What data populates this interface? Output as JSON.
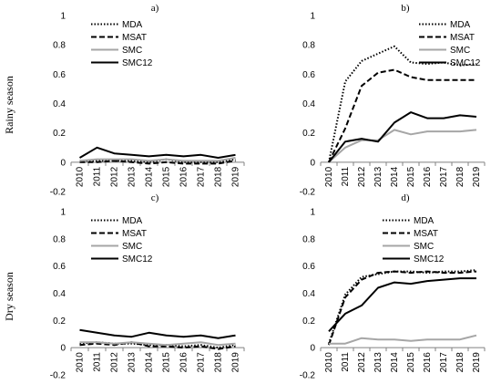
{
  "row_labels": [
    "Rainy season",
    "Dry season"
  ],
  "colors": {
    "MDA": "#000000",
    "MSAT": "#000000",
    "SMC": "#a6a6a6",
    "SMC12": "#000000",
    "axis": "#808080"
  },
  "chart_data": [
    {
      "type": "line",
      "title": "a)",
      "x": [
        "2010",
        "2011",
        "2012",
        "2013",
        "2014",
        "2015",
        "2016",
        "2017",
        "2018",
        "2019"
      ],
      "ylim": [
        -0.2,
        1.0
      ],
      "yticks": [
        "-0.2",
        "0",
        "0.2",
        "0.4",
        "0.6",
        "0.8",
        "1"
      ],
      "legend": "top-left",
      "series": [
        {
          "name": "MDA",
          "style": "dotted",
          "values": [
            0.01,
            0.01,
            0.01,
            0.01,
            0.0,
            0.02,
            0.0,
            0.0,
            0.0,
            0.02
          ]
        },
        {
          "name": "MSAT",
          "style": "dashed",
          "values": [
            0.0,
            0.0,
            0.01,
            0.0,
            -0.01,
            0.0,
            -0.01,
            -0.01,
            -0.01,
            0.01
          ]
        },
        {
          "name": "SMC",
          "style": "solid-gray",
          "values": [
            0.01,
            0.02,
            0.02,
            0.02,
            0.01,
            0.02,
            0.01,
            0.01,
            0.01,
            0.03
          ]
        },
        {
          "name": "SMC12",
          "style": "solid",
          "values": [
            0.03,
            0.1,
            0.06,
            0.05,
            0.04,
            0.05,
            0.04,
            0.05,
            0.03,
            0.05
          ]
        }
      ]
    },
    {
      "type": "line",
      "title": "b)",
      "x": [
        "2010",
        "2011",
        "2012",
        "2013",
        "2014",
        "2015",
        "2016",
        "2017",
        "2018",
        "2019"
      ],
      "ylim": [
        -0.2,
        1.0
      ],
      "yticks": [
        "-0.2",
        "0",
        "0.2",
        "0.4",
        "0.6",
        "0.8",
        "1"
      ],
      "legend": "top-right",
      "series": [
        {
          "name": "MDA",
          "style": "dotted",
          "values": [
            0.0,
            0.55,
            0.69,
            0.74,
            0.79,
            0.68,
            0.67,
            0.68,
            0.66,
            0.67
          ]
        },
        {
          "name": "MSAT",
          "style": "dashed",
          "values": [
            0.0,
            0.23,
            0.52,
            0.61,
            0.63,
            0.58,
            0.56,
            0.56,
            0.56,
            0.56
          ]
        },
        {
          "name": "SMC",
          "style": "solid-gray",
          "values": [
            0.0,
            0.1,
            0.15,
            0.15,
            0.22,
            0.19,
            0.21,
            0.21,
            0.21,
            0.22
          ]
        },
        {
          "name": "SMC12",
          "style": "solid",
          "values": [
            0.0,
            0.14,
            0.16,
            0.14,
            0.27,
            0.34,
            0.3,
            0.3,
            0.32,
            0.31
          ]
        }
      ]
    },
    {
      "type": "line",
      "title": "c)",
      "x": [
        "2010",
        "2011",
        "2012",
        "2013",
        "2014",
        "2015",
        "2016",
        "2017",
        "2018",
        "2019"
      ],
      "ylim": [
        -0.2,
        1.0
      ],
      "yticks": [
        "-0.2",
        "0",
        "0.2",
        "0.4",
        "0.6",
        "0.8",
        "1"
      ],
      "legend": "top-left",
      "series": [
        {
          "name": "MDA",
          "style": "dotted",
          "values": [
            0.03,
            0.04,
            0.03,
            0.03,
            0.02,
            0.02,
            0.01,
            0.02,
            0.0,
            0.02
          ]
        },
        {
          "name": "MSAT",
          "style": "dashed",
          "values": [
            0.02,
            0.03,
            0.02,
            0.04,
            0.01,
            0.01,
            0.0,
            0.01,
            -0.01,
            0.01
          ]
        },
        {
          "name": "SMC",
          "style": "solid-gray",
          "values": [
            0.04,
            0.04,
            0.03,
            0.04,
            0.03,
            0.02,
            0.03,
            0.04,
            0.02,
            0.03
          ]
        },
        {
          "name": "SMC12",
          "style": "solid",
          "values": [
            0.13,
            0.11,
            0.09,
            0.08,
            0.11,
            0.09,
            0.08,
            0.09,
            0.07,
            0.09
          ]
        }
      ]
    },
    {
      "type": "line",
      "title": "d)",
      "x": [
        "2010",
        "2011",
        "2012",
        "2013",
        "2014",
        "2015",
        "2016",
        "2017",
        "2018",
        "2019"
      ],
      "ylim": [
        -0.2,
        1.0
      ],
      "yticks": [
        "-0.2",
        "0",
        "0.2",
        "0.4",
        "0.6",
        "0.8",
        "1"
      ],
      "legend": "top-center",
      "series": [
        {
          "name": "MDA",
          "style": "dotted",
          "values": [
            0.03,
            0.39,
            0.52,
            0.54,
            0.56,
            0.56,
            0.55,
            0.56,
            0.56,
            0.57
          ]
        },
        {
          "name": "MSAT",
          "style": "dashed",
          "values": [
            0.02,
            0.37,
            0.5,
            0.55,
            0.56,
            0.55,
            0.56,
            0.55,
            0.55,
            0.56
          ]
        },
        {
          "name": "SMC",
          "style": "solid-gray",
          "values": [
            0.03,
            0.03,
            0.07,
            0.06,
            0.06,
            0.05,
            0.06,
            0.06,
            0.06,
            0.09
          ]
        },
        {
          "name": "SMC12",
          "style": "solid",
          "values": [
            0.12,
            0.25,
            0.31,
            0.44,
            0.48,
            0.47,
            0.49,
            0.5,
            0.51,
            0.51
          ]
        }
      ]
    }
  ]
}
